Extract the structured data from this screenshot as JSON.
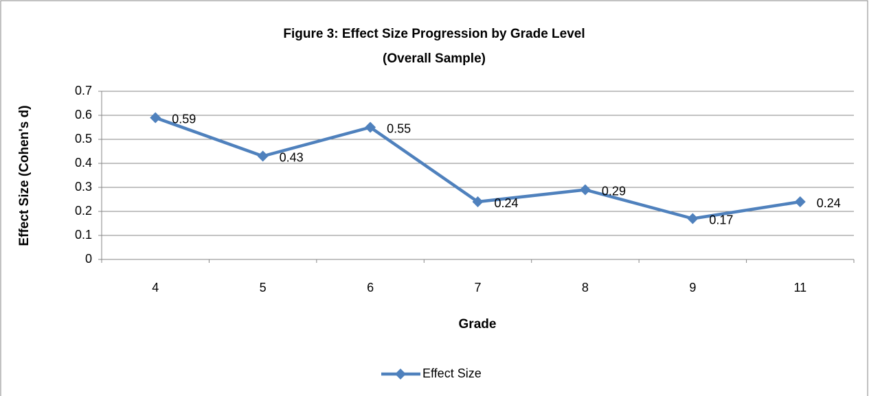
{
  "chart_data": {
    "type": "line",
    "title": "Figure 3: Effect Size Progression by Grade Level",
    "subtitle": "(Overall Sample)",
    "x_label": "Grade",
    "y_label": "Effect Size (Cohen's d)",
    "categories": [
      "4",
      "5",
      "6",
      "7",
      "8",
      "9",
      "11"
    ],
    "series": [
      {
        "name": "Effect Size",
        "color": "#4f81bd",
        "values": [
          0.59,
          0.43,
          0.55,
          0.24,
          0.29,
          0.17,
          0.24
        ]
      }
    ],
    "ylim": [
      0,
      0.7
    ],
    "yticks": [
      0,
      0.1,
      0.2,
      0.3,
      0.4,
      0.5,
      0.6,
      0.7
    ],
    "grid": true,
    "legend": "bottom",
    "data_labels": true
  }
}
